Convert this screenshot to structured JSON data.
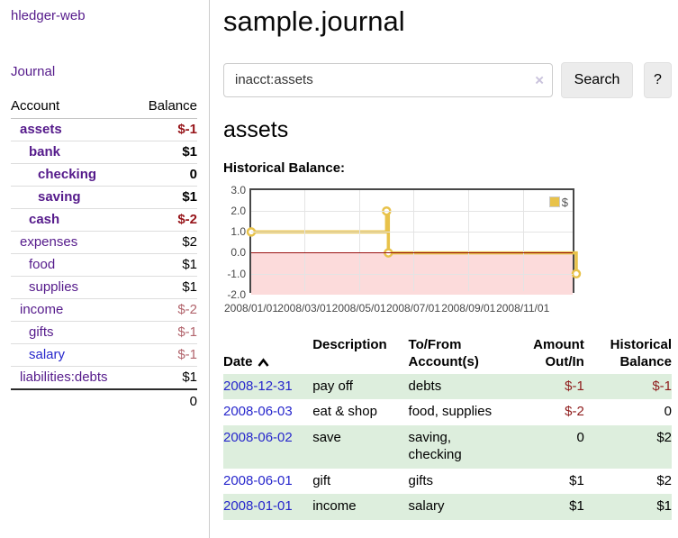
{
  "app": {
    "brand": "hledger-web",
    "nav_journal": "Journal"
  },
  "sidebar": {
    "header": {
      "account": "Account",
      "balance": "Balance"
    },
    "accounts": [
      {
        "name": "assets",
        "level": 1,
        "bold": true,
        "balance": "$-1",
        "balance_style": "neg-strong",
        "link_style": "visited"
      },
      {
        "name": "bank",
        "level": 2,
        "bold": true,
        "balance": "$1",
        "balance_style": "pos",
        "link_style": "visited"
      },
      {
        "name": "checking",
        "level": 3,
        "bold": true,
        "balance": "0",
        "balance_style": "pos",
        "link_style": "visited"
      },
      {
        "name": "saving",
        "level": 3,
        "bold": true,
        "balance": "$1",
        "balance_style": "pos",
        "link_style": "visited"
      },
      {
        "name": "cash",
        "level": 2,
        "bold": true,
        "balance": "$-2",
        "balance_style": "neg-strong",
        "link_style": "visited"
      },
      {
        "name": "expenses",
        "level": 1,
        "bold": false,
        "balance": "$2",
        "balance_style": "pos",
        "link_style": "visited"
      },
      {
        "name": "food",
        "level": 2,
        "bold": false,
        "balance": "$1",
        "balance_style": "pos",
        "link_style": "visited"
      },
      {
        "name": "supplies",
        "level": 2,
        "bold": false,
        "balance": "$1",
        "balance_style": "pos",
        "link_style": "visited"
      },
      {
        "name": "income",
        "level": 1,
        "bold": false,
        "balance": "$-2",
        "balance_style": "neg-soft",
        "link_style": "visited"
      },
      {
        "name": "gifts",
        "level": 2,
        "bold": false,
        "balance": "$-1",
        "balance_style": "neg-soft",
        "link_style": "visited"
      },
      {
        "name": "salary",
        "level": 2,
        "bold": false,
        "balance": "$-1",
        "balance_style": "neg-soft",
        "link_style": "unvisited"
      },
      {
        "name": "liabilities:debts",
        "level": 1,
        "bold": false,
        "balance": "$1",
        "balance_style": "pos",
        "link_style": "visited"
      }
    ],
    "total": "0"
  },
  "header": {
    "title": "sample.journal"
  },
  "search": {
    "value": "inacct:assets",
    "clear_icon": "×",
    "button": "Search",
    "help_button": "?"
  },
  "account_page": {
    "heading": "assets",
    "chart_label": "Historical Balance:"
  },
  "chart_data": {
    "type": "line",
    "step": true,
    "title": "Historical Balance",
    "series": [
      {
        "name": "$",
        "color": "#E8C24A",
        "points": [
          {
            "date": "2008-01-01",
            "value": 1
          },
          {
            "date": "2008-06-01",
            "value": 2
          },
          {
            "date": "2008-06-03",
            "value": 0
          },
          {
            "date": "2008-12-31",
            "value": -1
          }
        ]
      }
    ],
    "x_range": [
      "2008-01-01",
      "2008-12-31"
    ],
    "ylim": [
      -2,
      3
    ],
    "y_ticks": [
      "3.0",
      "2.0",
      "1.0",
      "0.0",
      "-1.0",
      "-2.0"
    ],
    "x_ticks": [
      "2008/01/01",
      "2008/03/01",
      "2008/05/01",
      "2008/07/01",
      "2008/09/01",
      "2008/11/01"
    ],
    "grid": true,
    "legend_position": "top-right",
    "negative_region_color": "#fcdbdb",
    "zero_line_color": "#991111"
  },
  "register": {
    "columns": {
      "date": "Date",
      "description": "Description",
      "tofrom": "To/From\nAccount(s)",
      "amount": "Amount\nOut/In",
      "balance": "Historical\nBalance"
    },
    "rows": [
      {
        "date": "2008-12-31",
        "description": "pay off",
        "accounts": "debts",
        "amount": "$-1",
        "amount_neg": true,
        "balance": "$-1",
        "balance_neg": true,
        "shade": true
      },
      {
        "date": "2008-06-03",
        "description": "eat & shop",
        "accounts": "food, supplies",
        "amount": "$-2",
        "amount_neg": true,
        "balance": "0",
        "balance_neg": false,
        "shade": false
      },
      {
        "date": "2008-06-02",
        "description": "save",
        "accounts": "saving,\nchecking",
        "amount": "0",
        "amount_neg": false,
        "balance": "$2",
        "balance_neg": false,
        "shade": true
      },
      {
        "date": "2008-06-01",
        "description": "gift",
        "accounts": "gifts",
        "amount": "$1",
        "amount_neg": false,
        "balance": "$2",
        "balance_neg": false,
        "shade": false
      },
      {
        "date": "2008-01-01",
        "description": "income",
        "accounts": "salary",
        "amount": "$1",
        "amount_neg": false,
        "balance": "$1",
        "balance_neg": false,
        "shade": true
      }
    ]
  }
}
